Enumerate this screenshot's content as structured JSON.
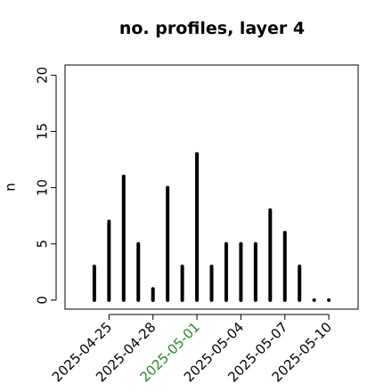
{
  "chart_data": {
    "type": "spike",
    "title": "no. profiles, layer 4",
    "ylabel": "n",
    "x": [
      "2025-04-24",
      "2025-04-25",
      "2025-04-26",
      "2025-04-27",
      "2025-04-28",
      "2025-04-29",
      "2025-04-30",
      "2025-05-01",
      "2025-05-02",
      "2025-05-03",
      "2025-05-04",
      "2025-05-05",
      "2025-05-06",
      "2025-05-07",
      "2025-05-08",
      "2025-05-09",
      "2025-05-10"
    ],
    "values": [
      3,
      7,
      11,
      5,
      1,
      10,
      3,
      13,
      3,
      5,
      5,
      5,
      8,
      6,
      3,
      0,
      0
    ],
    "color": "#000000",
    "xlim": [
      "2025-04-22",
      "2025-05-12"
    ],
    "xticks": [
      "2025-04-25",
      "2025-04-28",
      "2025-05-01",
      "2025-05-04",
      "2025-05-07",
      "2025-05-10"
    ],
    "xtick_colors": [
      "#000000",
      "#000000",
      "#228b22",
      "#000000",
      "#000000",
      "#000000"
    ],
    "ylim": [
      -0.8,
      20.9
    ],
    "yticks": [
      0,
      5,
      10,
      15,
      20
    ]
  }
}
